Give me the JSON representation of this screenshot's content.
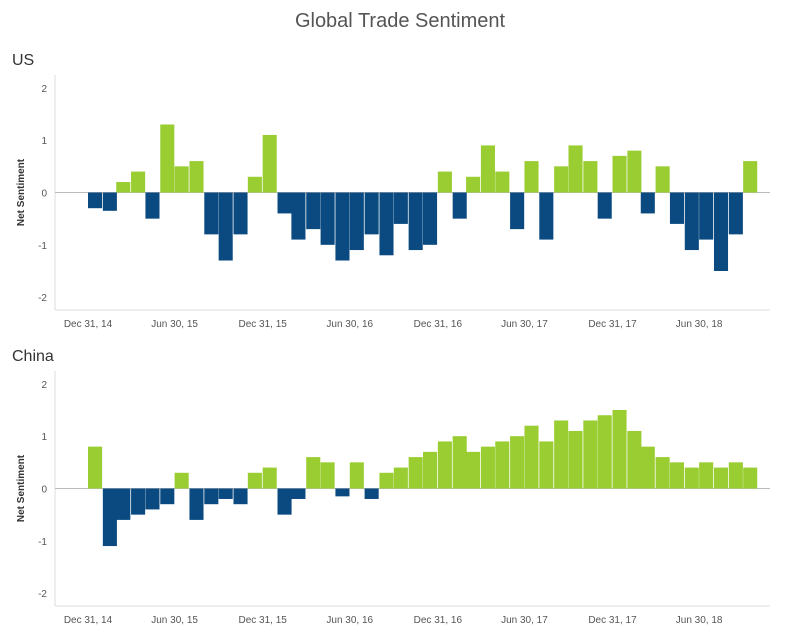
{
  "title": "Global Trade Sentiment",
  "colors": {
    "positive": "#9ACD32",
    "negative": "#0B4A80",
    "axis": "#dddddd",
    "zero": "#bbbbbb"
  },
  "chart_data": [
    {
      "type": "bar",
      "panel": "US",
      "ylabel": "Net Sentiment",
      "ylim": [
        -2.15,
        2.15
      ],
      "yticks": [
        "2",
        "1",
        "0",
        "-1",
        "-2"
      ],
      "xticks": [
        "Dec 31, 14",
        "Jun 30, 15",
        "Dec 31, 15",
        "Jun 30, 16",
        "Dec 31, 16",
        "Jun 30, 17",
        "Dec 31, 17",
        "Jun 30, 18"
      ],
      "grid": false,
      "series": [
        {
          "x": [
            "2014-12-31",
            "2015-01-31",
            "2015-02-28",
            "2015-03-31",
            "2015-04-30",
            "2015-05-31",
            "2015-06-30",
            "2015-07-31",
            "2015-08-31",
            "2015-09-30",
            "2015-10-31",
            "2015-11-30",
            "2015-12-31",
            "2016-01-31",
            "2016-02-29",
            "2016-03-31",
            "2016-04-30",
            "2016-05-31",
            "2016-06-30",
            "2016-07-31",
            "2016-08-31",
            "2016-09-30",
            "2016-10-31",
            "2016-11-30",
            "2016-12-31",
            "2017-01-31",
            "2017-02-28",
            "2017-03-31",
            "2017-04-30",
            "2017-05-31",
            "2017-06-30",
            "2017-07-31",
            "2017-08-31",
            "2017-09-30",
            "2017-10-31",
            "2017-11-30",
            "2017-12-31",
            "2018-01-31",
            "2018-02-28",
            "2018-03-31",
            "2018-04-30",
            "2018-05-31",
            "2018-06-30",
            "2018-07-31",
            "2018-08-31",
            "2018-09-30"
          ],
          "values": [
            -0.3,
            -0.35,
            0.2,
            0.4,
            -0.5,
            1.3,
            0.5,
            0.6,
            -0.8,
            -1.3,
            -0.8,
            0.3,
            1.1,
            -0.4,
            -0.9,
            -0.7,
            -1.0,
            -1.3,
            -1.1,
            -0.8,
            -1.2,
            -0.6,
            -1.1,
            -1.0,
            0.4,
            -0.5,
            0.3,
            0.9,
            0.4,
            -0.7,
            0.6,
            -0.9,
            0.5,
            0.9,
            0.6,
            -0.5,
            0.7,
            0.8,
            -0.4,
            0.5,
            -0.6,
            -1.1,
            -0.9,
            -1.5,
            -0.8,
            0.6
          ]
        }
      ]
    },
    {
      "type": "bar",
      "panel": "China",
      "ylabel": "Net Sentiment",
      "ylim": [
        -2.15,
        2.15
      ],
      "yticks": [
        "2",
        "1",
        "0",
        "-1",
        "-2"
      ],
      "xticks": [
        "Dec 31, 14",
        "Jun 30, 15",
        "Dec 31, 15",
        "Jun 30, 16",
        "Dec 31, 16",
        "Jun 30, 17",
        "Dec 31, 17",
        "Jun 30, 18"
      ],
      "grid": false,
      "series": [
        {
          "x": [
            "2014-12-31",
            "2015-01-31",
            "2015-02-28",
            "2015-03-31",
            "2015-04-30",
            "2015-05-31",
            "2015-06-30",
            "2015-07-31",
            "2015-08-31",
            "2015-09-30",
            "2015-10-31",
            "2015-11-30",
            "2015-12-31",
            "2016-01-31",
            "2016-02-29",
            "2016-03-31",
            "2016-04-30",
            "2016-05-31",
            "2016-06-30",
            "2016-07-31",
            "2016-08-31",
            "2016-09-30",
            "2016-10-31",
            "2016-11-30",
            "2016-12-31",
            "2017-01-31",
            "2017-02-28",
            "2017-03-31",
            "2017-04-30",
            "2017-05-31",
            "2017-06-30",
            "2017-07-31",
            "2017-08-31",
            "2017-09-30",
            "2017-10-31",
            "2017-11-30",
            "2017-12-31",
            "2018-01-31",
            "2018-02-28",
            "2018-03-31",
            "2018-04-30",
            "2018-05-31",
            "2018-06-30",
            "2018-07-31",
            "2018-08-31",
            "2018-09-30"
          ],
          "values": [
            0.8,
            -1.1,
            -0.6,
            -0.5,
            -0.4,
            -0.3,
            0.3,
            -0.6,
            -0.3,
            -0.2,
            -0.3,
            0.3,
            0.4,
            -0.5,
            -0.2,
            0.6,
            0.5,
            -0.15,
            0.5,
            -0.2,
            0.3,
            0.4,
            0.6,
            0.7,
            0.9,
            1.0,
            0.7,
            0.8,
            0.9,
            1.0,
            1.2,
            0.9,
            1.3,
            1.1,
            1.3,
            1.4,
            1.5,
            1.1,
            0.8,
            0.6,
            0.5,
            0.4,
            0.5,
            0.4,
            0.5,
            0.4
          ]
        }
      ]
    }
  ]
}
